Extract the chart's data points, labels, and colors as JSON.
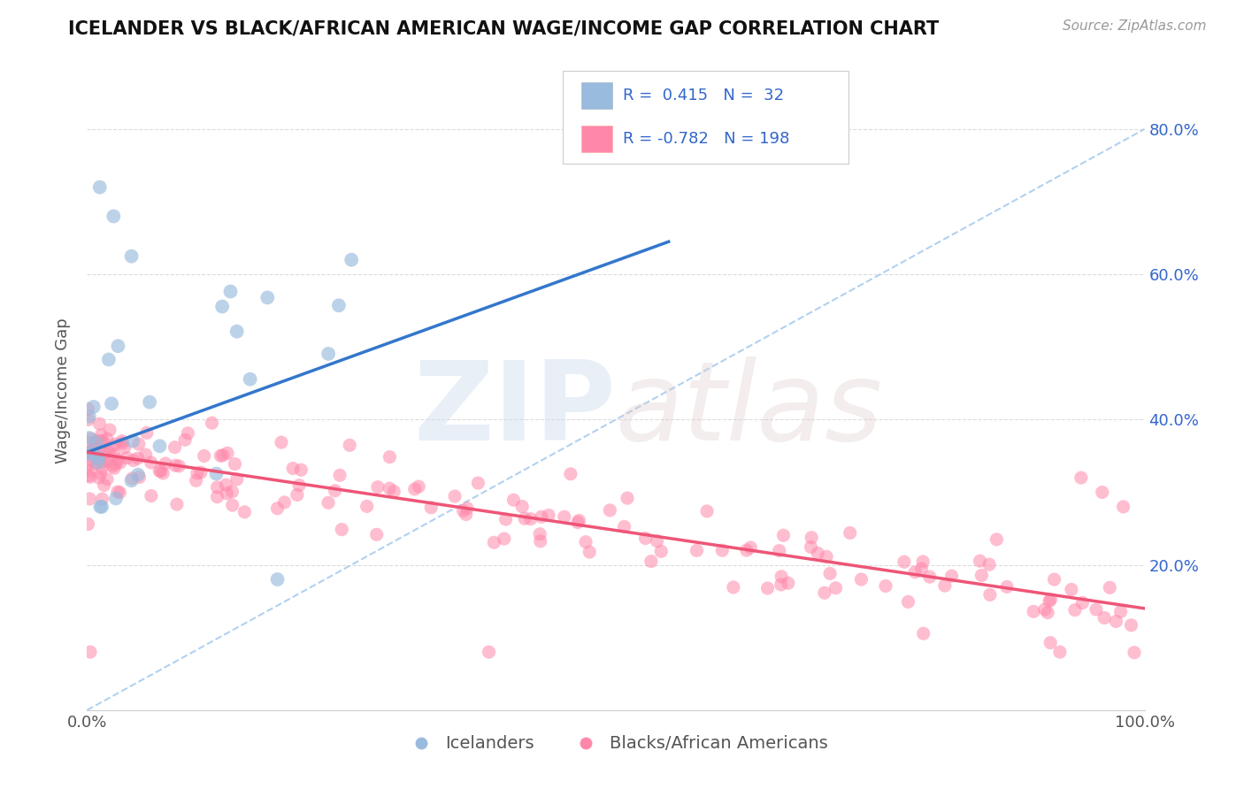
{
  "title": "ICELANDER VS BLACK/AFRICAN AMERICAN WAGE/INCOME GAP CORRELATION CHART",
  "source_text": "Source: ZipAtlas.com",
  "ylabel": "Wage/Income Gap",
  "r1": 0.415,
  "n1": 32,
  "r2": -0.782,
  "n2": 198,
  "color_blue": "#99BBDD",
  "color_blue_line": "#3377CC",
  "color_pink": "#FF88AA",
  "color_pink_line": "#EE5577",
  "color_dashed": "#AACCEE",
  "color_ytick": "#3366CC",
  "xlim": [
    0.0,
    1.0
  ],
  "ylim": [
    0.0,
    0.88
  ],
  "yticks": [
    0.2,
    0.4,
    0.6,
    0.8
  ],
  "yticklabels": [
    "20.0%",
    "40.0%",
    "60.0%",
    "80.0%"
  ],
  "blue_trend_x": [
    0.0,
    0.55
  ],
  "blue_trend_y": [
    0.355,
    0.645
  ],
  "pink_trend_x": [
    0.0,
    1.0
  ],
  "pink_trend_y": [
    0.355,
    0.14
  ],
  "legend_label_blue": "Icelanders",
  "legend_label_pink": "Blacks/African Americans"
}
